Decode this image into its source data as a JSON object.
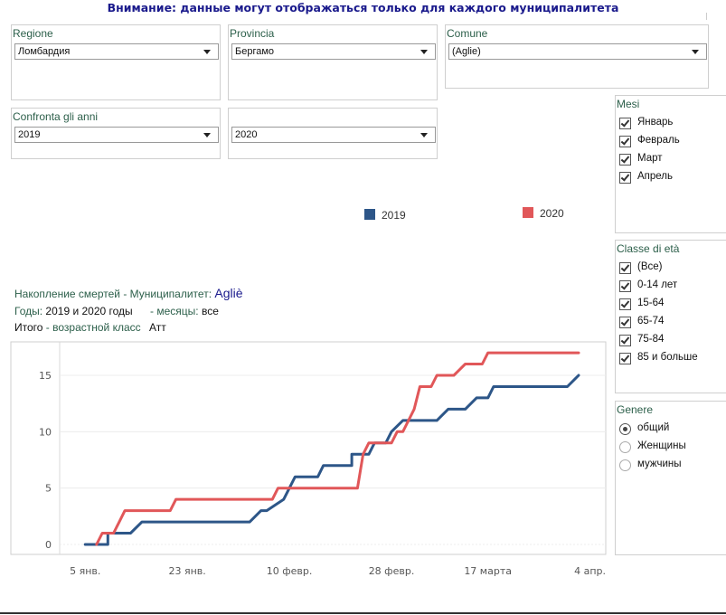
{
  "banner": "Внимание: данные могут отображаться только для каждого муниципалитета",
  "filters": {
    "regione": {
      "label": "Regione",
      "value": "Ломбардия"
    },
    "provincia": {
      "label": "Provincia",
      "value": "Бергамо"
    },
    "comune": {
      "label": "Comune",
      "value": "(Aglie)"
    },
    "confronta": {
      "label": "Confronta gli anni",
      "value": "2019"
    },
    "confronta2": {
      "value": "2020"
    }
  },
  "mesi": {
    "title": "Mesi",
    "items": [
      "Январь",
      "Февраль",
      "Март",
      "Апрель"
    ]
  },
  "classe": {
    "title": "Classe di età",
    "items": [
      "(Все)",
      "0-14 лет",
      "15-64",
      "65-74",
      "75-84",
      "85 и больше"
    ]
  },
  "genere": {
    "title": "Genere",
    "items": [
      "общий",
      "Женщины",
      "мужчины"
    ],
    "selected": 0
  },
  "legend": [
    {
      "name": "2019",
      "color": "#2d5688"
    },
    {
      "name": "2020",
      "color": "#e15759"
    }
  ],
  "info": {
    "line1_label": "Накопление смертей - Муниципалитет:",
    "line1_value": "Agliè",
    "line2_label": "Годы:",
    "line2_value": "2019 и 2020 годы",
    "line2_label2": "- месяцы:",
    "line2_value2": "все",
    "line3_label": "Итого",
    "line3_label2": "- возрастной класс",
    "line3_value": "Атт"
  },
  "chart_data": {
    "type": "line",
    "x_unit": "day of year (1 = 1 Jan)",
    "xlim": [
      0.5,
      98
    ],
    "ylim": [
      -1,
      18
    ],
    "yticks": [
      0,
      5,
      10,
      15
    ],
    "xticks": [
      {
        "day": 5,
        "label": "5 янв."
      },
      {
        "day": 23,
        "label": "23 янв."
      },
      {
        "day": 41,
        "label": "10 февр."
      },
      {
        "day": 59,
        "label": "28 февр."
      },
      {
        "day": 76,
        "label": "17 марта"
      },
      {
        "day": 94,
        "label": "4 апр."
      }
    ],
    "series": [
      {
        "name": "2019",
        "color": "#2d5688",
        "x": [
          5,
          9,
          9,
          13,
          15,
          17,
          17,
          34,
          36,
          37,
          40,
          42,
          43,
          46,
          47,
          52,
          52,
          55,
          56,
          58,
          59,
          61,
          62,
          67,
          69,
          72,
          74,
          76,
          77,
          81,
          90,
          92
        ],
        "y": [
          0,
          0,
          1,
          1,
          2,
          2,
          2,
          2,
          3,
          3,
          4,
          6,
          6,
          6,
          7,
          7,
          8,
          8,
          9,
          9,
          10,
          11,
          11,
          11,
          12,
          12,
          13,
          13,
          14,
          14,
          14,
          15
        ]
      },
      {
        "name": "2020",
        "color": "#e15759",
        "x": [
          7,
          8,
          10,
          11,
          12,
          13,
          14,
          15,
          20,
          21,
          38,
          39,
          53,
          54,
          55,
          56,
          59,
          60,
          61,
          63,
          64,
          66,
          67,
          68,
          70,
          72,
          74,
          75,
          76,
          77,
          91,
          92
        ],
        "y": [
          0,
          1,
          1,
          2,
          3,
          3,
          3,
          3,
          3,
          4,
          4,
          5,
          5,
          8,
          9,
          9,
          9,
          10,
          10,
          12,
          14,
          14,
          15,
          15,
          15,
          16,
          16,
          16,
          17,
          17,
          17,
          17
        ]
      }
    ]
  }
}
